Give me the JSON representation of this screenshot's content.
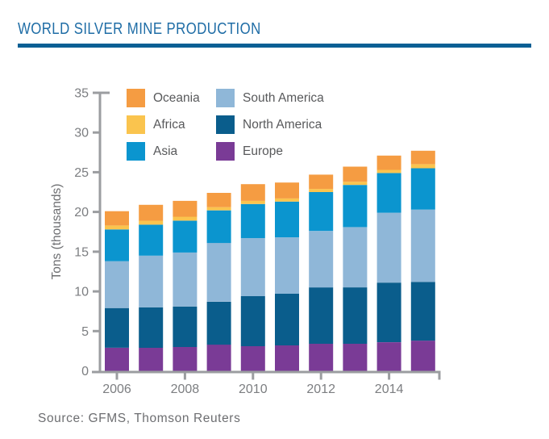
{
  "header": {
    "title": "WORLD SILVER MINE PRODUCTION"
  },
  "source": {
    "text": "Source: GFMS, Thomson Reuters"
  },
  "colors": {
    "title_blue": "#1F6DA6",
    "rule_blue": "#0A5F94",
    "axis_gray": "#9B9DA0",
    "tick_label_gray": "#7C7E81",
    "axis_title_gray": "#6D6E71",
    "legend_text_gray": "#58595B",
    "background": "#FFFFFF"
  },
  "chart_data": {
    "type": "bar",
    "stacked": true,
    "title": "WORLD SILVER MINE PRODUCTION",
    "xlabel": "",
    "ylabel": "Tons (thousands)",
    "ylim": [
      0,
      35
    ],
    "yticks": [
      0,
      5,
      10,
      15,
      20,
      25,
      30,
      35
    ],
    "grid": false,
    "categories": [
      "2006",
      "2007",
      "2008",
      "2009",
      "2010",
      "2011",
      "2012",
      "2013",
      "2014",
      "2015"
    ],
    "xtick_labeled_categories": [
      "2006",
      "2008",
      "2010",
      "2012",
      "2014"
    ],
    "series": [
      {
        "name": "Europe",
        "color": "#7A3B96",
        "values": [
          2.9,
          2.9,
          3.0,
          3.3,
          3.1,
          3.2,
          3.4,
          3.4,
          3.6,
          3.8
        ]
      },
      {
        "name": "North America",
        "color": "#0A5D8C",
        "values": [
          5.0,
          5.1,
          5.1,
          5.4,
          6.3,
          6.5,
          7.1,
          7.1,
          7.5,
          7.4
        ]
      },
      {
        "name": "South America",
        "color": "#8FB7D8",
        "values": [
          5.9,
          6.5,
          6.8,
          7.4,
          7.3,
          7.1,
          7.1,
          7.6,
          8.8,
          9.1
        ]
      },
      {
        "name": "Asia",
        "color": "#0B95CF",
        "values": [
          4.0,
          3.9,
          4.0,
          4.1,
          4.3,
          4.5,
          4.9,
          5.3,
          5.0,
          5.2
        ]
      },
      {
        "name": "Africa",
        "color": "#FAC44E",
        "values": [
          0.5,
          0.5,
          0.5,
          0.4,
          0.4,
          0.4,
          0.4,
          0.4,
          0.4,
          0.5
        ]
      },
      {
        "name": "Oceania",
        "color": "#F59C42",
        "values": [
          1.8,
          2.0,
          2.0,
          1.8,
          2.1,
          2.0,
          1.8,
          1.9,
          1.8,
          1.7
        ]
      }
    ],
    "totals": [
      20.1,
      20.9,
      21.4,
      22.4,
      23.5,
      23.7,
      24.7,
      25.7,
      27.1,
      27.7
    ],
    "legend_position": "top-left-inside",
    "legend_columns": [
      [
        "Oceania",
        "Africa",
        "Asia"
      ],
      [
        "South America",
        "North America",
        "Europe"
      ]
    ]
  }
}
